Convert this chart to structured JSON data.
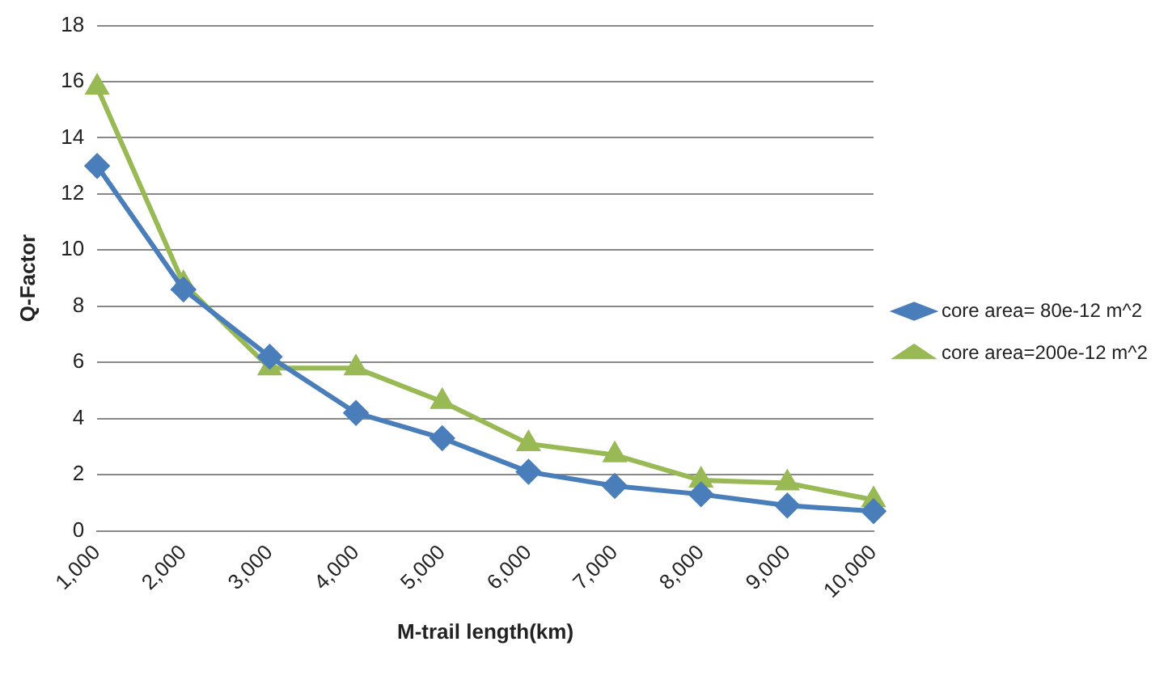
{
  "chart_data": {
    "type": "line",
    "xlabel": "M-trail length(km)",
    "ylabel": "Q-Factor",
    "categories": [
      "1,000",
      "2,000",
      "3,000",
      "4,000",
      "5,000",
      "6,000",
      "7,000",
      "8,000",
      "9,000",
      "10,000"
    ],
    "series": [
      {
        "name": "core area= 80e-12 m^2",
        "color": "#4a7ebb",
        "marker": "diamond",
        "values": [
          13,
          8.6,
          6.2,
          4.2,
          3.3,
          2.1,
          1.6,
          1.3,
          0.9,
          0.7
        ]
      },
      {
        "name": "core area=200e-12 m^2",
        "color": "#98b954",
        "marker": "triangle",
        "values": [
          15.8,
          8.8,
          5.8,
          5.8,
          4.6,
          3.1,
          2.7,
          1.8,
          1.7,
          1.1
        ]
      }
    ],
    "ylim": [
      0,
      18
    ],
    "yticks": [
      0,
      2,
      4,
      6,
      8,
      10,
      12,
      14,
      16,
      18
    ],
    "grid": "y",
    "legend": "right"
  }
}
